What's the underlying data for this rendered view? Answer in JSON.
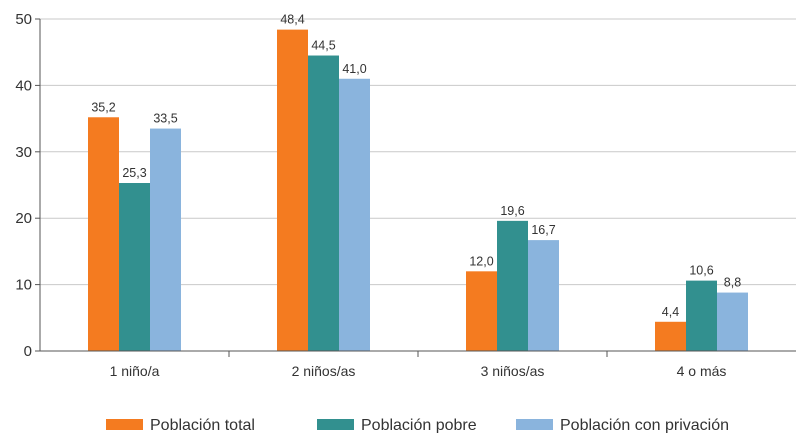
{
  "chart_data": {
    "type": "bar",
    "categories": [
      "1 niño/a",
      "2 niños/as",
      "3 niños/as",
      "4 o más"
    ],
    "series": [
      {
        "name": "Población total",
        "color": "#f47b20",
        "values": [
          35.2,
          48.4,
          12.0,
          4.4
        ],
        "labels": [
          "35,2",
          "48,4",
          "12,0",
          "4,4"
        ]
      },
      {
        "name": "Población pobre",
        "color": "#32908f",
        "values": [
          25.3,
          44.5,
          19.6,
          10.6
        ],
        "labels": [
          "25,3",
          "44,5",
          "19,6",
          "10,6"
        ]
      },
      {
        "name": "Población con privación",
        "color": "#8ab4dd",
        "values": [
          33.5,
          41.0,
          16.7,
          8.8
        ],
        "labels": [
          "33,5",
          "41,0",
          "16,7",
          "8,8"
        ]
      }
    ],
    "ylim": [
      0,
      50
    ],
    "yticks": [
      0,
      10,
      20,
      30,
      40,
      50
    ],
    "grid": true,
    "legend": "bottom",
    "title": "",
    "xlabel": "",
    "ylabel": ""
  }
}
